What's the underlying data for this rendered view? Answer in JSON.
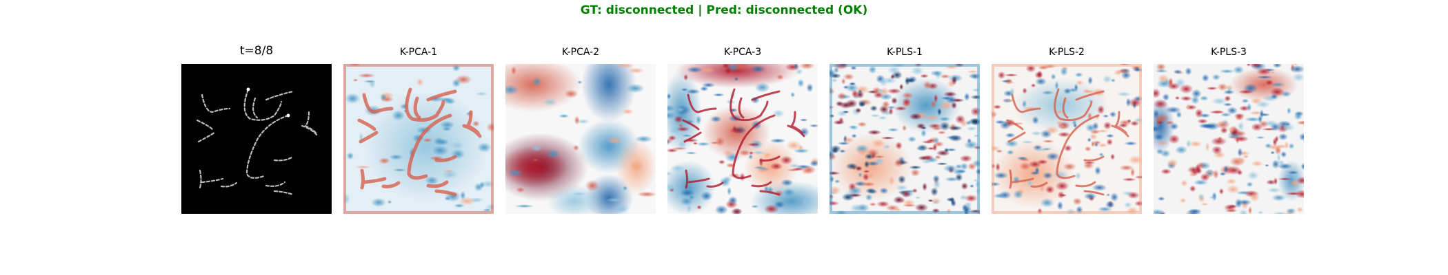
{
  "suptitle": "GT: disconnected | Pred: disconnected (OK)",
  "title_color": "#008000",
  "chart_data": {
    "type": "heatmap",
    "colormap_input": "gray",
    "colormap_components": "RdBu_r",
    "panels": [
      {
        "title": "t=8/8",
        "kind": "input"
      },
      {
        "title": "K-PCA-1",
        "kind": "component"
      },
      {
        "title": "K-PCA-2",
        "kind": "component"
      },
      {
        "title": "K-PCA-3",
        "kind": "component"
      },
      {
        "title": "K-PLS-1",
        "kind": "component"
      },
      {
        "title": "K-PLS-2",
        "kind": "component"
      },
      {
        "title": "K-PLS-3",
        "kind": "component"
      }
    ]
  }
}
